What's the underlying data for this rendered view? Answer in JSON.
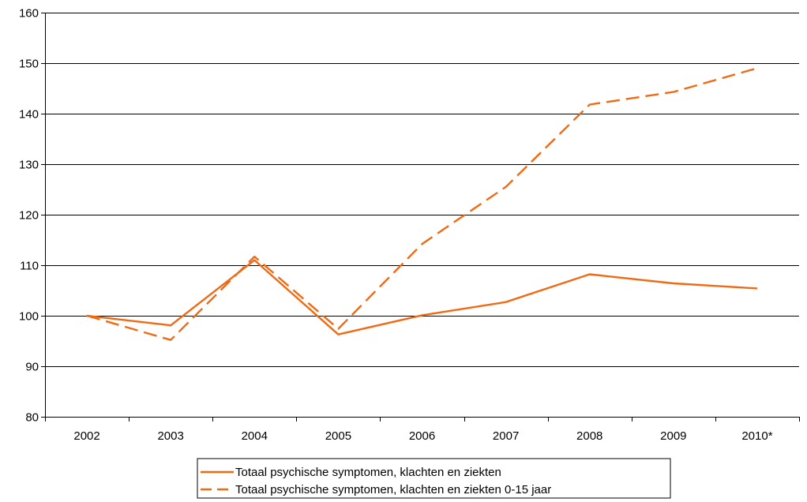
{
  "chart_data": {
    "type": "line",
    "title": "",
    "xlabel": "",
    "ylabel": "",
    "categories": [
      "2002",
      "2003",
      "2004",
      "2005",
      "2006",
      "2007",
      "2008",
      "2009",
      "2010*"
    ],
    "ylim": [
      80,
      160
    ],
    "yticks": [
      80,
      90,
      100,
      110,
      120,
      130,
      140,
      150,
      160
    ],
    "grid": "horizontal",
    "legend_position": "bottom-center",
    "series": [
      {
        "name": "Totaal psychische symptomen, klachten en ziekten",
        "style": "solid",
        "color": "#f06a14",
        "values": [
          100,
          98.1,
          111,
          96.3,
          100.1,
          102.7,
          108.2,
          106.4,
          105.4
        ]
      },
      {
        "name": "Totaal psychische symptomen, klachten en ziekten 0-15 jaar",
        "style": "dashed",
        "color": "#f06a14",
        "values": [
          100,
          95.2,
          111.7,
          97.4,
          114.2,
          125.5,
          141.8,
          144.3,
          149
        ]
      }
    ]
  }
}
